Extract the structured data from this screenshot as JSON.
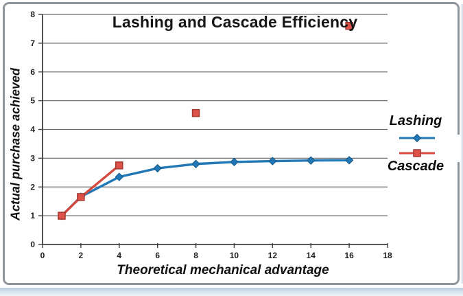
{
  "chart_data": {
    "type": "line",
    "title": "Lashing and Cascade Efficiency",
    "xlabel": "Theoretical mechanical advantage",
    "ylabel": "Actual purchase achieved",
    "xlim": [
      0,
      18
    ],
    "ylim": [
      0,
      8
    ],
    "x_ticks": [
      0,
      2,
      4,
      6,
      8,
      10,
      12,
      14,
      16,
      18
    ],
    "y_ticks": [
      0,
      1,
      2,
      3,
      4,
      5,
      6,
      7,
      8
    ],
    "grid": "horizontal",
    "grid_color": "#6f6f6f",
    "axis_color": "#3f3f3f",
    "legend_position": "right",
    "series": [
      {
        "name": "Lashing",
        "marker": "diamond",
        "color": "#2277b6",
        "marker_edge": "#155a86",
        "x": [
          1,
          2,
          4,
          6,
          8,
          10,
          12,
          14,
          16
        ],
        "y": [
          1.0,
          1.66,
          2.35,
          2.65,
          2.8,
          2.87,
          2.9,
          2.92,
          2.93
        ]
      },
      {
        "name": "Cascade",
        "marker": "square",
        "color": "#d44a40",
        "marker_fill": "#de5349",
        "marker_edge": "#a33730",
        "line_through_first_n": 3,
        "x": [
          1,
          2,
          4,
          8,
          16
        ],
        "y": [
          1.0,
          1.65,
          2.75,
          4.57,
          7.6
        ]
      }
    ]
  }
}
